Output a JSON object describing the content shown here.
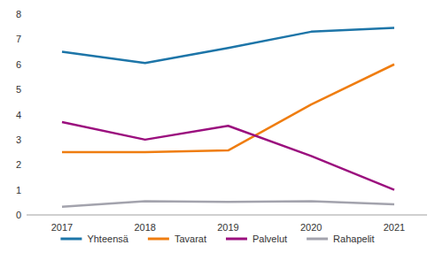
{
  "chart_data": {
    "type": "line",
    "categories": [
      "2017",
      "2018",
      "2019",
      "2020",
      "2021"
    ],
    "series": [
      {
        "name": "Yhteensä",
        "color": "#1d75a8",
        "values": [
          6.5,
          6.05,
          6.65,
          7.3,
          7.45
        ]
      },
      {
        "name": "Tavarat",
        "color": "#ef7d10",
        "values": [
          2.5,
          2.5,
          2.57,
          4.4,
          6.0
        ]
      },
      {
        "name": "Palvelut",
        "color": "#9b0f7e",
        "values": [
          3.7,
          3.0,
          3.55,
          2.35,
          1.0
        ]
      },
      {
        "name": "Rahapelit",
        "color": "#a3a3ad",
        "values": [
          0.33,
          0.55,
          0.52,
          0.55,
          0.42
        ]
      }
    ],
    "ylim": [
      0,
      8
    ],
    "yticks": [
      0,
      1,
      2,
      3,
      4,
      5,
      6,
      7,
      8
    ],
    "grid": false,
    "legend": "bottom"
  }
}
